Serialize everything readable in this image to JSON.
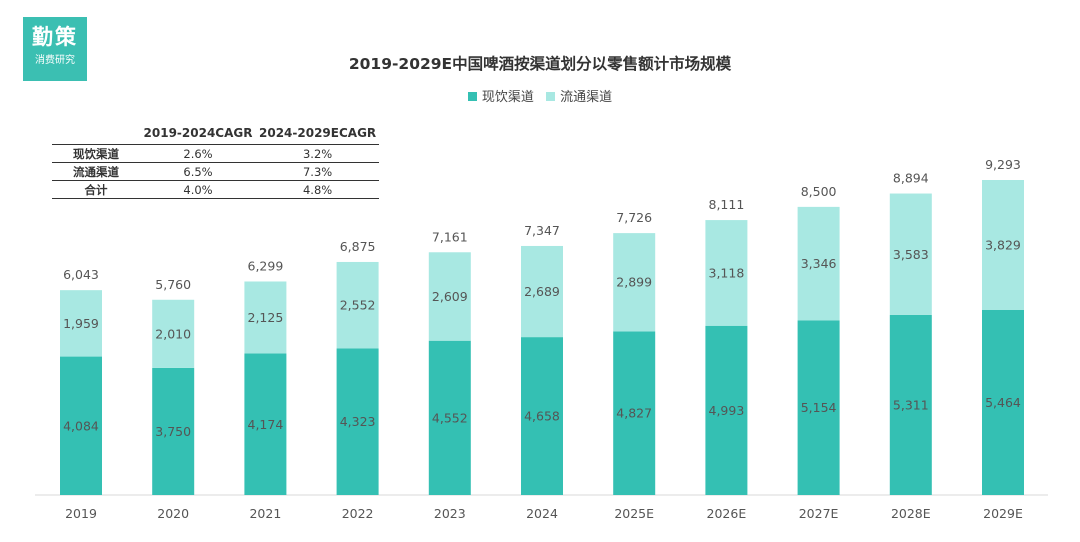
{
  "logo": {
    "name": "勤策",
    "subtitle": "消费研究"
  },
  "chart_data": {
    "type": "bar",
    "stacked": true,
    "title": "2019-2029E中国啤酒按渠道划分以零售额计市场规模",
    "categories": [
      "2019",
      "2020",
      "2021",
      "2022",
      "2023",
      "2024",
      "2025E",
      "2026E",
      "2027E",
      "2028E",
      "2029E"
    ],
    "series": [
      {
        "name": "现饮渠道",
        "color": "#34c0b3",
        "values": [
          4084,
          3750,
          4174,
          4323,
          4552,
          4658,
          4827,
          4993,
          5154,
          5311,
          5464
        ]
      },
      {
        "name": "流通渠道",
        "color": "#a8e8e2",
        "values": [
          1959,
          2010,
          2125,
          2552,
          2609,
          2689,
          2899,
          3118,
          3346,
          3583,
          3829
        ]
      }
    ],
    "totals": [
      6043,
      5760,
      6299,
      6875,
      7161,
      7347,
      7726,
      8111,
      8500,
      8894,
      9293
    ],
    "ylim": [
      0,
      10000
    ],
    "legend_position": "top-center",
    "grid": false
  },
  "cagr_table": {
    "headers": [
      "",
      "2019-2024CAGR",
      "2024-2029ECAGR"
    ],
    "rows": [
      {
        "label": "现饮渠道",
        "v1": "2.6%",
        "v2": "3.2%"
      },
      {
        "label": "流通渠道",
        "v1": "6.5%",
        "v2": "7.3%"
      },
      {
        "label": "合计",
        "v1": "4.0%",
        "v2": "4.8%"
      }
    ]
  }
}
